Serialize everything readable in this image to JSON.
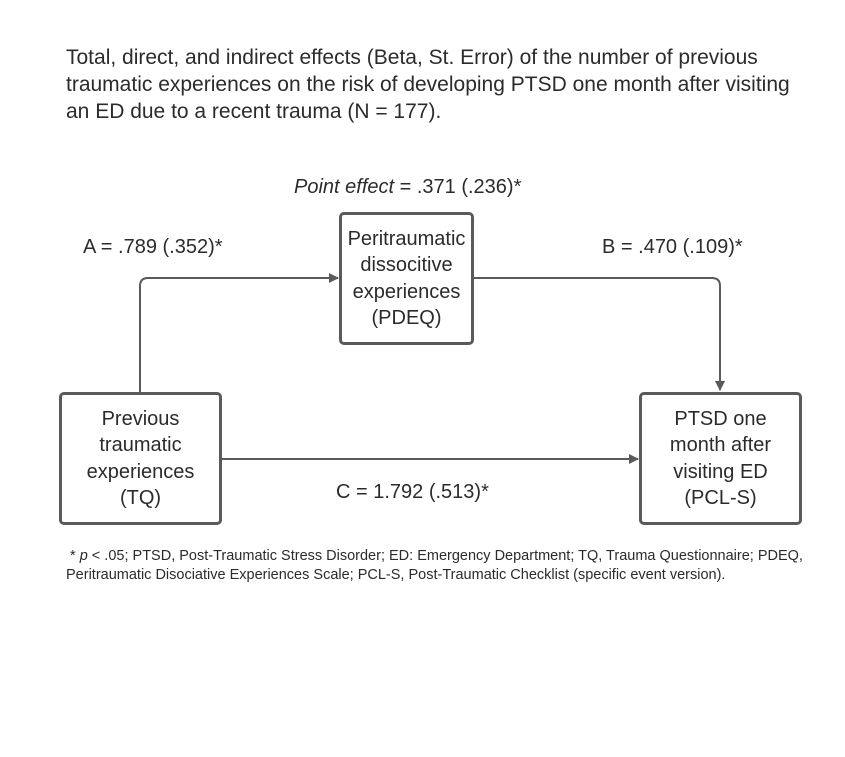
{
  "title": "Total, direct, and indirect effects (Beta, St. Error) of the number of previous traumatic experiences on the risk of developing PTSD one month after visiting an ED due to a recent trauma (N = 177).",
  "point_effect": {
    "label": "Point effect",
    "value": " = .371 (.236)*"
  },
  "nodes": {
    "tq": {
      "lines": [
        "Previous",
        "traumatic",
        "experiences",
        "(TQ)"
      ]
    },
    "pdeq": {
      "lines": [
        "Peritraumatic",
        "dissocitive",
        "experiences",
        "(PDEQ)"
      ]
    },
    "pcl": {
      "lines": [
        "PTSD one",
        "month after",
        "visiting ED",
        "(PCL-S)"
      ]
    }
  },
  "paths": {
    "a": "A = .789 (.352)*",
    "b": "B = .470 (.109)*",
    "c": "C = 1.792 (.513)*"
  },
  "footnote": {
    "star": "* ",
    "p": "p",
    "rest": " < .05; PTSD, Post-Traumatic Stress Disorder; ED: Emergency Department; TQ, Trauma Questionnaire; PDEQ, Peritraumatic Disociative Experiences Scale; PCL-S, Post-Traumatic Checklist (specific event version)."
  },
  "colors": {
    "line": "#5a5a5a",
    "text": "#2b2b2b"
  }
}
